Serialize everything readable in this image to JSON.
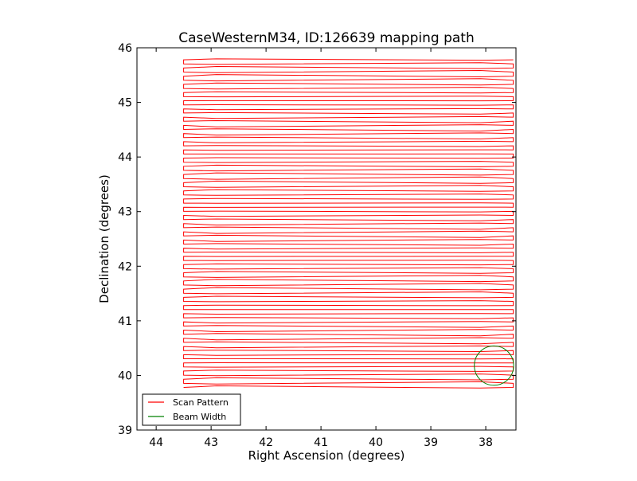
{
  "chart_data": {
    "type": "line",
    "title": "CaseWesternM34, ID:126639 mapping path",
    "xlabel": "Right Ascension (degrees)",
    "ylabel": "Declination (degrees)",
    "xlim": [
      44.35,
      37.45
    ],
    "ylim": [
      39,
      46
    ],
    "x_inverted": true,
    "xticks": [
      44,
      43,
      42,
      41,
      40,
      39,
      38
    ],
    "yticks": [
      39,
      40,
      41,
      42,
      43,
      44,
      45,
      46
    ],
    "grid": false,
    "legend": {
      "placement": "lower-left",
      "entries": [
        "Scan Pattern",
        "Beam Width"
      ]
    },
    "series": [
      {
        "name": "Scan Pattern",
        "color": "#ff0000",
        "kind": "raster-scan",
        "ra_start": 43.5,
        "ra_end": 37.5,
        "dec_start": 39.78,
        "dec_end": 45.78,
        "row_spacing": 0.075
      },
      {
        "name": "Beam Width",
        "color": "#008000",
        "kind": "circle",
        "center_ra": 37.85,
        "center_dec": 40.18,
        "radius_deg": 0.36
      }
    ]
  }
}
